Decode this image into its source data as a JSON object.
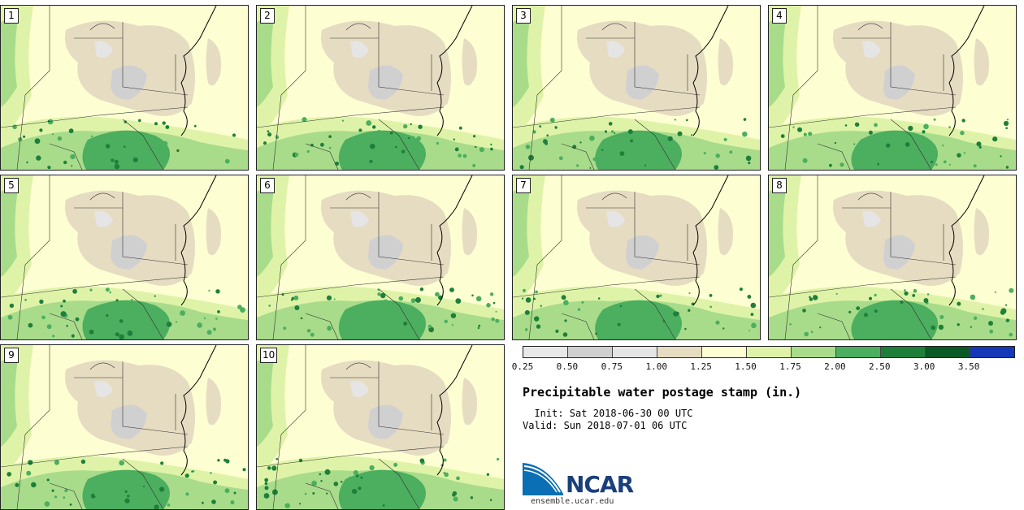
{
  "stamps": [
    {
      "label": "1"
    },
    {
      "label": "2"
    },
    {
      "label": "3"
    },
    {
      "label": "4"
    },
    {
      "label": "5"
    },
    {
      "label": "6"
    },
    {
      "label": "7"
    },
    {
      "label": "8"
    },
    {
      "label": "9"
    },
    {
      "label": "10"
    }
  ],
  "colorbar": {
    "colors": [
      "#e8e8e8",
      "#d0d0d0",
      "#e5e5e5",
      "#e6dcc2",
      "#fdfed2",
      "#dff3a8",
      "#a8dc8a",
      "#4cae5f",
      "#1e7f3a",
      "#0a5a25",
      "#1537b8"
    ],
    "ticks": [
      "0.25",
      "0.50",
      "0.75",
      "1.00",
      "1.25",
      "1.50",
      "1.75",
      "2.00",
      "2.50",
      "3.00",
      "3.50"
    ]
  },
  "title": "Precipitable water postage stamp (in.)",
  "init": "  Init: Sat 2018-06-30 00 UTC",
  "valid": "Valid: Sun 2018-07-01 06 UTC",
  "logo": {
    "name": "NCAR",
    "url": "ensemble.ucar.edu"
  }
}
